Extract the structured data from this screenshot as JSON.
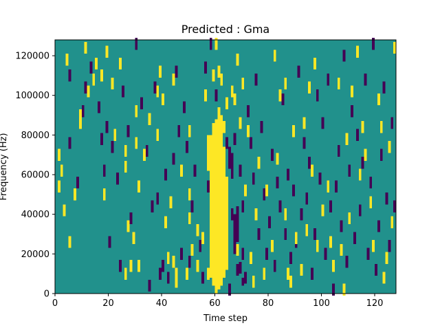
{
  "chart_data": {
    "type": "heatmap",
    "title": "Predicted : Gma",
    "xlabel": "Time step",
    "ylabel": "Frequency (Hz)",
    "xlim": [
      0,
      128
    ],
    "ylim": [
      0,
      128000
    ],
    "x_ticks": [
      0,
      20,
      40,
      60,
      80,
      100,
      120
    ],
    "y_ticks": [
      0,
      20000,
      40000,
      60000,
      80000,
      100000,
      120000
    ],
    "value_levels": [
      -1,
      0,
      1
    ],
    "colors": {
      "background": "#21918c",
      "low": "#440154",
      "high": "#fde725",
      "axes": "#000000"
    },
    "grid": false,
    "legend": false,
    "high_cells": [
      [
        1,
        70000
      ],
      [
        1,
        54000
      ],
      [
        2,
        62000
      ],
      [
        3,
        42000
      ],
      [
        4,
        118000
      ],
      [
        5,
        26000
      ],
      [
        7,
        50000
      ],
      [
        9,
        90000
      ],
      [
        9,
        86000
      ],
      [
        11,
        124000
      ],
      [
        12,
        102000
      ],
      [
        14,
        108000
      ],
      [
        15,
        116000
      ],
      [
        17,
        110000
      ],
      [
        18,
        50000
      ],
      [
        19,
        122000
      ],
      [
        21,
        106000
      ],
      [
        22,
        80000
      ],
      [
        24,
        116000
      ],
      [
        26,
        64000
      ],
      [
        26,
        72000
      ],
      [
        26,
        10000
      ],
      [
        27,
        34000
      ],
      [
        28,
        14000
      ],
      [
        29,
        28000
      ],
      [
        30,
        76000
      ],
      [
        30,
        92000
      ],
      [
        31,
        54000
      ],
      [
        31,
        14000
      ],
      [
        33,
        70000
      ],
      [
        35,
        88000
      ],
      [
        38,
        80000
      ],
      [
        38,
        102000
      ],
      [
        39,
        112000
      ],
      [
        40,
        98000
      ],
      [
        41,
        36000
      ],
      [
        42,
        18000
      ],
      [
        43,
        46000
      ],
      [
        44,
        108000
      ],
      [
        44,
        16000
      ],
      [
        45,
        10000
      ],
      [
        45,
        6000
      ],
      [
        47,
        62000
      ],
      [
        49,
        10000
      ],
      [
        50,
        82000
      ],
      [
        50,
        50000
      ],
      [
        50,
        38000
      ],
      [
        51,
        22000
      ],
      [
        53,
        32000
      ],
      [
        53,
        14000
      ],
      [
        55,
        28000
      ],
      [
        56,
        100000
      ],
      [
        57,
        10000
      ],
      [
        59,
        110000
      ],
      [
        60,
        126000
      ],
      [
        61,
        112000
      ],
      [
        62,
        108000
      ],
      [
        63,
        84000
      ],
      [
        62,
        18000
      ],
      [
        64,
        56000
      ],
      [
        64,
        96000
      ],
      [
        66,
        102000
      ],
      [
        67,
        98000
      ],
      [
        68,
        118000
      ],
      [
        68,
        22000
      ],
      [
        69,
        86000
      ],
      [
        70,
        106000
      ],
      [
        71,
        52000
      ],
      [
        72,
        82000
      ],
      [
        73,
        18000
      ],
      [
        74,
        6000
      ],
      [
        75,
        40000
      ],
      [
        76,
        66000
      ],
      [
        78,
        10000
      ],
      [
        79,
        52000
      ],
      [
        81,
        24000
      ],
      [
        82,
        120000
      ],
      [
        83,
        68000
      ],
      [
        84,
        100000
      ],
      [
        86,
        106000
      ],
      [
        86,
        40000
      ],
      [
        87,
        10000
      ],
      [
        88,
        6000
      ],
      [
        89,
        82000
      ],
      [
        90,
        28000
      ],
      [
        92,
        12000
      ],
      [
        93,
        86000
      ],
      [
        94,
        32000
      ],
      [
        95,
        104000
      ],
      [
        96,
        62000
      ],
      [
        97,
        116000
      ],
      [
        98,
        24000
      ],
      [
        100,
        42000
      ],
      [
        102,
        54000
      ],
      [
        103,
        26000
      ],
      [
        104,
        14000
      ],
      [
        106,
        106000
      ],
      [
        107,
        22000
      ],
      [
        108,
        2000
      ],
      [
        109,
        78000
      ],
      [
        110,
        38000
      ],
      [
        111,
        102000
      ],
      [
        113,
        122000
      ],
      [
        114,
        60000
      ],
      [
        115,
        84000
      ],
      [
        116,
        70000
      ],
      [
        118,
        46000
      ],
      [
        119,
        24000
      ],
      [
        121,
        98000
      ],
      [
        122,
        84000
      ],
      [
        123,
        8000
      ],
      [
        124,
        18000
      ],
      [
        125,
        74000
      ],
      [
        126,
        36000
      ],
      [
        127,
        124000
      ]
    ],
    "high_band": [
      {
        "x": 57,
        "y": [
          62000,
          80000
        ]
      },
      {
        "x": 58,
        "y": [
          8000,
          80000
        ]
      },
      {
        "x": 59,
        "y": [
          4000,
          86000
        ]
      },
      {
        "x": 60,
        "y": [
          0,
          88000
        ]
      },
      {
        "x": 61,
        "y": [
          2000,
          94000
        ]
      },
      {
        "x": 62,
        "y": [
          4000,
          90000
        ]
      },
      {
        "x": 63,
        "y": [
          8000,
          74000
        ]
      },
      {
        "x": 64,
        "y": [
          12000,
          58000
        ]
      }
    ],
    "low_cells": [
      [
        5,
        76000
      ],
      [
        5,
        110000
      ],
      [
        8,
        56000
      ],
      [
        10,
        92000
      ],
      [
        11,
        104000
      ],
      [
        13,
        114000
      ],
      [
        16,
        94000
      ],
      [
        17,
        78000
      ],
      [
        18,
        62000
      ],
      [
        19,
        84000
      ],
      [
        20,
        26000
      ],
      [
        21,
        74000
      ],
      [
        23,
        58000
      ],
      [
        24,
        14000
      ],
      [
        25,
        102000
      ],
      [
        27,
        82000
      ],
      [
        28,
        38000
      ],
      [
        30,
        126000
      ],
      [
        32,
        96000
      ],
      [
        34,
        72000
      ],
      [
        35,
        4000
      ],
      [
        36,
        44000
      ],
      [
        37,
        104000
      ],
      [
        38,
        48000
      ],
      [
        39,
        10000
      ],
      [
        40,
        14000
      ],
      [
        41,
        60000
      ],
      [
        42,
        8000
      ],
      [
        44,
        68000
      ],
      [
        45,
        112000
      ],
      [
        46,
        82000
      ],
      [
        47,
        20000
      ],
      [
        48,
        94000
      ],
      [
        49,
        74000
      ],
      [
        50,
        16000
      ],
      [
        51,
        44000
      ],
      [
        52,
        62000
      ],
      [
        54,
        24000
      ],
      [
        55,
        8000
      ],
      [
        56,
        114000
      ],
      [
        57,
        54000
      ],
      [
        58,
        126000
      ],
      [
        60,
        100000
      ],
      [
        61,
        32000
      ],
      [
        63,
        46000
      ],
      [
        64,
        76000
      ],
      [
        65,
        2000
      ],
      [
        65,
        66000
      ],
      [
        66,
        40000
      ],
      [
        66,
        68000
      ],
      [
        67,
        28000
      ],
      [
        67,
        78000
      ],
      [
        68,
        12000
      ],
      [
        68,
        34000
      ],
      [
        69,
        62000
      ],
      [
        70,
        44000
      ],
      [
        70,
        20000
      ],
      [
        71,
        8000
      ],
      [
        72,
        92000
      ],
      [
        73,
        76000
      ],
      [
        74,
        58000
      ],
      [
        75,
        108000
      ],
      [
        76,
        30000
      ],
      [
        77,
        84000
      ],
      [
        78,
        50000
      ],
      [
        79,
        20000
      ],
      [
        80,
        36000
      ],
      [
        81,
        70000
      ],
      [
        82,
        14000
      ],
      [
        83,
        56000
      ],
      [
        84,
        44000
      ],
      [
        85,
        98000
      ],
      [
        86,
        30000
      ],
      [
        87,
        60000
      ],
      [
        88,
        18000
      ],
      [
        89,
        52000
      ],
      [
        90,
        26000
      ],
      [
        91,
        112000
      ],
      [
        92,
        40000
      ],
      [
        93,
        76000
      ],
      [
        94,
        48000
      ],
      [
        95,
        66000
      ],
      [
        96,
        10000
      ],
      [
        97,
        30000
      ],
      [
        98,
        100000
      ],
      [
        99,
        58000
      ],
      [
        100,
        86000
      ],
      [
        101,
        20000
      ],
      [
        102,
        108000
      ],
      [
        103,
        44000
      ],
      [
        104,
        2000
      ],
      [
        105,
        54000
      ],
      [
        106,
        72000
      ],
      [
        107,
        34000
      ],
      [
        108,
        120000
      ],
      [
        109,
        16000
      ],
      [
        110,
        62000
      ],
      [
        111,
        92000
      ],
      [
        112,
        28000
      ],
      [
        113,
        80000
      ],
      [
        114,
        42000
      ],
      [
        115,
        66000
      ],
      [
        116,
        108000
      ],
      [
        117,
        20000
      ],
      [
        118,
        56000
      ],
      [
        119,
        126000
      ],
      [
        120,
        12000
      ],
      [
        121,
        34000
      ],
      [
        122,
        70000
      ],
      [
        123,
        104000
      ],
      [
        124,
        48000
      ],
      [
        125,
        24000
      ],
      [
        126,
        86000
      ],
      [
        127,
        44000
      ]
    ],
    "low_band": [
      {
        "x": 65,
        "y": [
          66000,
          74000
        ]
      },
      {
        "x": 66,
        "y": [
          58000,
          66000
        ]
      },
      {
        "x": 67,
        "y": [
          20000,
          40000
        ]
      },
      {
        "x": 68,
        "y": [
          26000,
          44000
        ]
      },
      {
        "x": 69,
        "y": [
          10000,
          16000
        ]
      },
      {
        "x": 70,
        "y": [
          4000,
          8000
        ]
      }
    ]
  }
}
